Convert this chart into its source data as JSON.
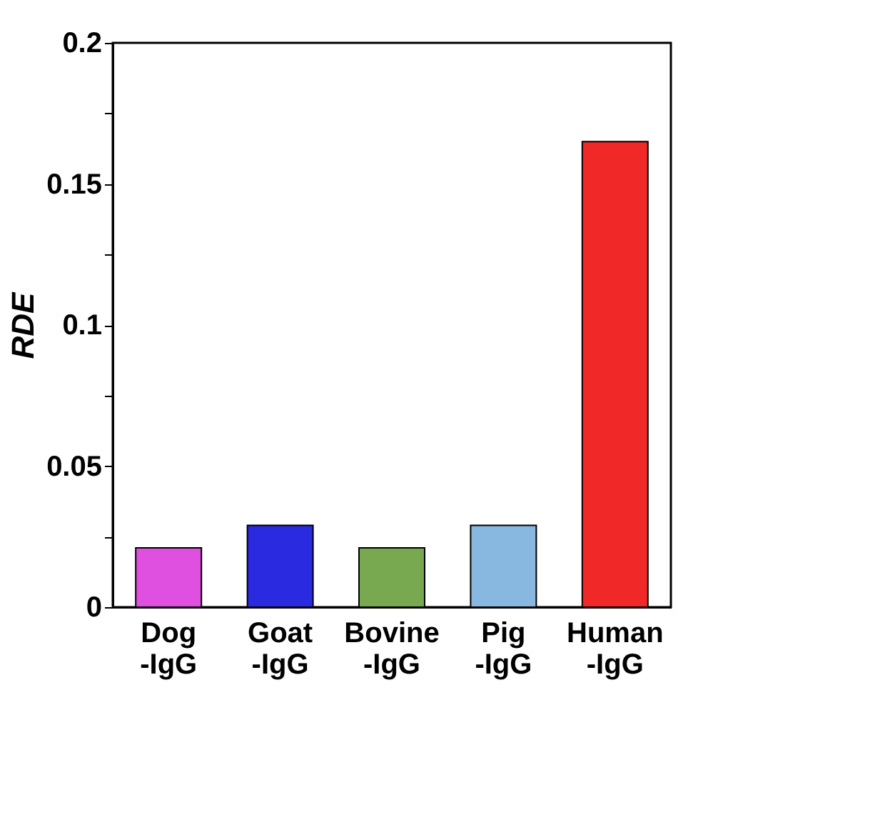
{
  "chart_data": {
    "type": "bar",
    "ylabel": "RDE",
    "categories": [
      "Dog\n-IgG",
      "Goat\n-IgG",
      "Bovine\n-IgG",
      "Pig\n-IgG",
      "Human\n-IgG"
    ],
    "values": [
      0.021,
      0.029,
      0.021,
      0.029,
      0.165
    ],
    "colors": [
      "#e050e0",
      "#2a2ae0",
      "#78a850",
      "#88b8e0",
      "#f02828"
    ],
    "ylim": [
      0,
      0.2
    ],
    "yticks": [
      0,
      {
        "value": 0.025,
        "label": null
      },
      0.05,
      {
        "value": 0.075,
        "label": null
      },
      0.1,
      {
        "value": 0.125,
        "label": null
      },
      0.15,
      {
        "value": 0.175,
        "label": null
      },
      0.2
    ],
    "grid": false
  }
}
